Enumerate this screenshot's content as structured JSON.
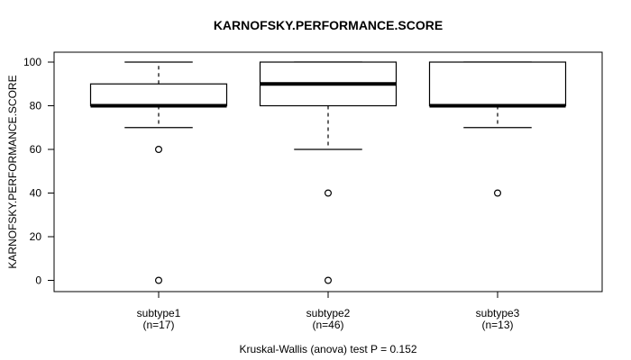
{
  "chart_data": {
    "type": "boxplot",
    "title": "KARNOFSKY.PERFORMANCE.SCORE",
    "ylabel": "KARNOFSKY.PERFORMANCE.SCORE",
    "xlabel": "",
    "caption": "Kruskal-Wallis (anova) test P = 0.152",
    "p_value": 0.152,
    "ylim": [
      0,
      100
    ],
    "yticks": [
      0,
      20,
      40,
      60,
      80,
      100
    ],
    "grid": false,
    "legend": "none",
    "groups": [
      {
        "label": "subtype1",
        "sublabel": "(n=17)",
        "n": 17,
        "whisker_low": 70,
        "q1": 80,
        "median": 80,
        "q3": 90,
        "whisker_high": 100,
        "outliers": [
          60,
          0
        ]
      },
      {
        "label": "subtype2",
        "sublabel": "(n=46)",
        "n": 46,
        "whisker_low": 60,
        "q1": 80,
        "median": 90,
        "q3": 100,
        "whisker_high": 100,
        "outliers": [
          40,
          0
        ]
      },
      {
        "label": "subtype3",
        "sublabel": "(n=13)",
        "n": 13,
        "whisker_low": 70,
        "q1": 80,
        "median": 80,
        "q3": 100,
        "whisker_high": 100,
        "outliers": [
          40
        ]
      }
    ],
    "colors": {
      "stroke": "#000000",
      "box_fill": "#ffffff",
      "background": "#ffffff",
      "text": "#000000"
    }
  }
}
